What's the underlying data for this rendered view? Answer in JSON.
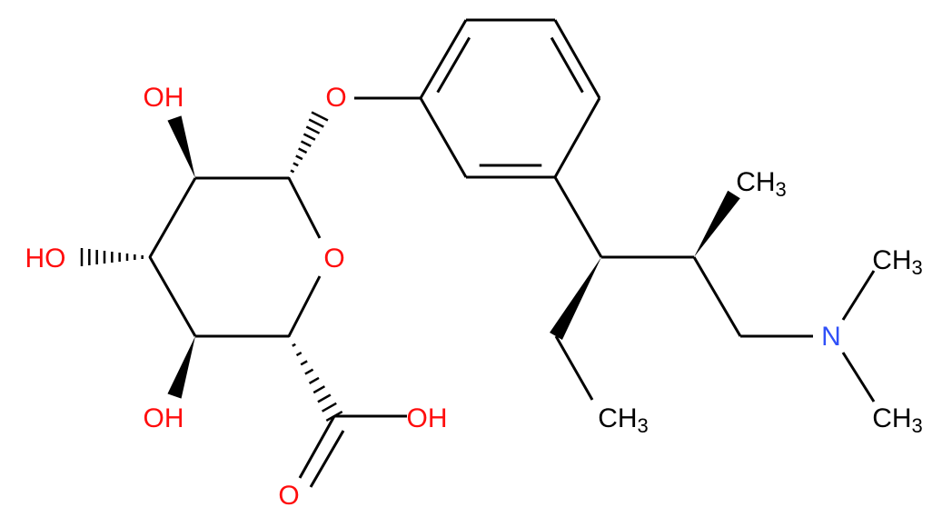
{
  "atoms": [
    {
      "label": "OH"
    },
    {
      "label": "O"
    },
    {
      "label": "HO"
    },
    {
      "label": "O"
    },
    {
      "label": "OH"
    },
    {
      "label": "OH"
    },
    {
      "label": "O"
    },
    {
      "label": "CH",
      "sub": "3"
    },
    {
      "label": "N"
    },
    {
      "label": "CH",
      "sub": "3"
    },
    {
      "label": "CH",
      "sub": "3"
    },
    {
      "label": "CH",
      "sub": "3"
    }
  ]
}
